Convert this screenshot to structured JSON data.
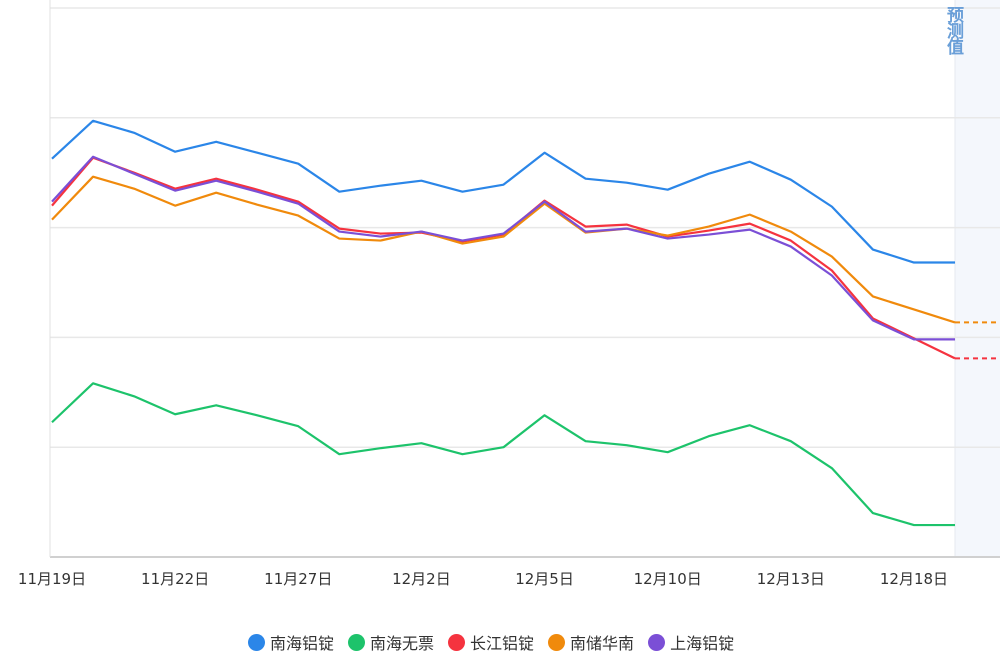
{
  "chart_data": {
    "type": "line",
    "title": "",
    "xlabel": "",
    "ylabel": "",
    "ylim": [
      0,
      550
    ],
    "y_axis_labels_shown": false,
    "grid": true,
    "legend_position": "bottom",
    "forecast_label": "预测值",
    "x": [
      "11/19",
      "11/20",
      "11/21",
      "11/22",
      "11/25",
      "11/26",
      "11/27",
      "11/28",
      "11/29",
      "12/2",
      "12/3",
      "12/4",
      "12/5",
      "12/6",
      "12/9",
      "12/10",
      "12/11",
      "12/12",
      "12/13",
      "12/16",
      "12/17",
      "12/18",
      "12/19"
    ],
    "x_tick_labels": [
      {
        "index": 0,
        "label": "11月19日"
      },
      {
        "index": 3,
        "label": "11月22日"
      },
      {
        "index": 6,
        "label": "11月27日"
      },
      {
        "index": 9,
        "label": "12月2日"
      },
      {
        "index": 12,
        "label": "12月5日"
      },
      {
        "index": 15,
        "label": "12月10日"
      },
      {
        "index": 18,
        "label": "12月13日"
      },
      {
        "index": 21,
        "label": "12月18日"
      }
    ],
    "series": [
      {
        "name": "南海铝锭",
        "color": "#2b86e8",
        "values": [
          399,
          437,
          425,
          406,
          416,
          405,
          394,
          366,
          372,
          377,
          366,
          373,
          405,
          379,
          375,
          368,
          384,
          396,
          378,
          351,
          308,
          295,
          295
        ]
      },
      {
        "name": "南海无票",
        "color": "#1dc36b",
        "values": [
          135,
          174,
          161,
          143,
          152,
          142,
          131,
          103,
          109,
          114,
          103,
          110,
          142,
          116,
          112,
          105,
          121,
          132,
          116,
          89,
          44,
          32,
          32
        ]
      },
      {
        "name": "长江铝锭",
        "color": "#f5333f",
        "values": [
          352,
          400,
          385,
          369,
          379,
          368,
          356,
          329,
          324,
          325,
          316,
          323,
          357,
          331,
          333,
          321,
          327,
          334,
          317,
          287,
          239,
          219,
          199
        ],
        "forecast": 199
      },
      {
        "name": "南储华南",
        "color": "#f08a0c",
        "values": [
          338,
          381,
          369,
          352,
          365,
          353,
          342,
          319,
          317,
          326,
          314,
          321,
          354,
          325,
          329,
          322,
          331,
          343,
          326,
          301,
          261,
          248,
          235
        ],
        "forecast": 235
      },
      {
        "name": "上海铝锭",
        "color": "#7b4fd6",
        "values": [
          356,
          401,
          384,
          367,
          377,
          366,
          354,
          326,
          321,
          326,
          317,
          324,
          356,
          326,
          329,
          319,
          323,
          328,
          311,
          282,
          237,
          218,
          218
        ]
      }
    ]
  }
}
